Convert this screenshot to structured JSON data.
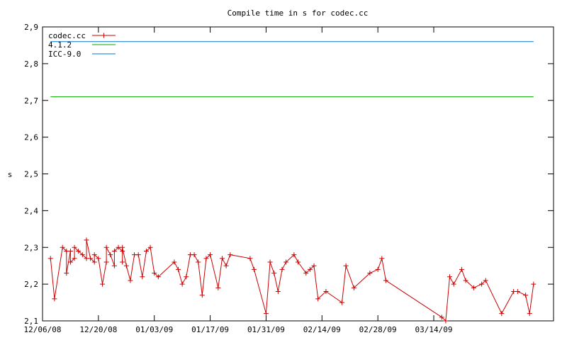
{
  "chart_data": {
    "type": "line",
    "title": "Compile time in s for codec.cc",
    "xlabel": "",
    "ylabel": "s",
    "ylim": [
      2.1,
      2.9
    ],
    "xlim": [
      "2008-12-06",
      "2009-04-13"
    ],
    "grid": false,
    "legend_position": "top-left",
    "y_ticks": [
      "2,1",
      "2,2",
      "2,3",
      "2,4",
      "2,5",
      "2,6",
      "2,7",
      "2,8",
      "2,9"
    ],
    "x_ticks": [
      "12/06/08",
      "12/20/08",
      "01/03/09",
      "01/17/09",
      "01/31/09",
      "02/14/09",
      "02/28/09",
      "03/14/09"
    ],
    "series": [
      {
        "name": "codec.cc",
        "color": "#cc0000",
        "marker": "plus",
        "points": [
          [
            "2008-12-08",
            2.27
          ],
          [
            "2008-12-09",
            2.16
          ],
          [
            "2008-12-11",
            2.3
          ],
          [
            "2008-12-12",
            2.29
          ],
          [
            "2008-12-12",
            2.23
          ],
          [
            "2008-12-13",
            2.29
          ],
          [
            "2008-12-13",
            2.26
          ],
          [
            "2008-12-14",
            2.27
          ],
          [
            "2008-12-14",
            2.3
          ],
          [
            "2008-12-15",
            2.29
          ],
          [
            "2008-12-16",
            2.28
          ],
          [
            "2008-12-17",
            2.27
          ],
          [
            "2008-12-17",
            2.32
          ],
          [
            "2008-12-18",
            2.27
          ],
          [
            "2008-12-19",
            2.26
          ],
          [
            "2008-12-19",
            2.28
          ],
          [
            "2008-12-20",
            2.27
          ],
          [
            "2008-12-21",
            2.2
          ],
          [
            "2008-12-22",
            2.26
          ],
          [
            "2008-12-22",
            2.3
          ],
          [
            "2008-12-23",
            2.28
          ],
          [
            "2008-12-24",
            2.25
          ],
          [
            "2008-12-24",
            2.29
          ],
          [
            "2008-12-25",
            2.3
          ],
          [
            "2008-12-26",
            2.29
          ],
          [
            "2008-12-26",
            2.26
          ],
          [
            "2008-12-26",
            2.3
          ],
          [
            "2008-12-27",
            2.25
          ],
          [
            "2008-12-28",
            2.21
          ],
          [
            "2008-12-29",
            2.28
          ],
          [
            "2008-12-30",
            2.28
          ],
          [
            "2008-12-31",
            2.22
          ],
          [
            "2009-01-01",
            2.29
          ],
          [
            "2009-01-02",
            2.3
          ],
          [
            "2009-01-03",
            2.23
          ],
          [
            "2009-01-04",
            2.22
          ],
          [
            "2009-01-08",
            2.26
          ],
          [
            "2009-01-09",
            2.24
          ],
          [
            "2009-01-10",
            2.2
          ],
          [
            "2009-01-11",
            2.22
          ],
          [
            "2009-01-12",
            2.28
          ],
          [
            "2009-01-13",
            2.28
          ],
          [
            "2009-01-14",
            2.26
          ],
          [
            "2009-01-15",
            2.17
          ],
          [
            "2009-01-16",
            2.27
          ],
          [
            "2009-01-17",
            2.28
          ],
          [
            "2009-01-19",
            2.19
          ],
          [
            "2009-01-20",
            2.27
          ],
          [
            "2009-01-21",
            2.25
          ],
          [
            "2009-01-22",
            2.28
          ],
          [
            "2009-01-27",
            2.27
          ],
          [
            "2009-01-28",
            2.24
          ],
          [
            "2009-01-31",
            2.12
          ],
          [
            "2009-02-01",
            2.26
          ],
          [
            "2009-02-02",
            2.23
          ],
          [
            "2009-02-03",
            2.18
          ],
          [
            "2009-02-04",
            2.24
          ],
          [
            "2009-02-05",
            2.26
          ],
          [
            "2009-02-07",
            2.28
          ],
          [
            "2009-02-08",
            2.26
          ],
          [
            "2009-02-10",
            2.23
          ],
          [
            "2009-02-11",
            2.24
          ],
          [
            "2009-02-12",
            2.25
          ],
          [
            "2009-02-13",
            2.16
          ],
          [
            "2009-02-15",
            2.18
          ],
          [
            "2009-02-19",
            2.15
          ],
          [
            "2009-02-20",
            2.25
          ],
          [
            "2009-02-22",
            2.19
          ],
          [
            "2009-02-26",
            2.23
          ],
          [
            "2009-02-28",
            2.24
          ],
          [
            "2009-03-01",
            2.27
          ],
          [
            "2009-03-02",
            2.21
          ],
          [
            "2009-03-16",
            2.11
          ],
          [
            "2009-03-17",
            2.1
          ],
          [
            "2009-03-18",
            2.22
          ],
          [
            "2009-03-19",
            2.2
          ],
          [
            "2009-03-21",
            2.24
          ],
          [
            "2009-03-22",
            2.21
          ],
          [
            "2009-03-24",
            2.19
          ],
          [
            "2009-03-26",
            2.2
          ],
          [
            "2009-03-27",
            2.21
          ],
          [
            "2009-03-31",
            2.12
          ],
          [
            "2009-04-03",
            2.18
          ],
          [
            "2009-04-04",
            2.18
          ],
          [
            "2009-04-06",
            2.17
          ],
          [
            "2009-04-07",
            2.12
          ],
          [
            "2009-04-08",
            2.2
          ]
        ]
      },
      {
        "name": "4.1.2",
        "color": "#00aa00",
        "points": [
          [
            "2008-12-08",
            2.71
          ],
          [
            "2009-04-08",
            2.71
          ]
        ]
      },
      {
        "name": "ICC-9.0",
        "color": "#0077cc",
        "points": [
          [
            "2008-12-08",
            2.86
          ],
          [
            "2009-04-08",
            2.86
          ]
        ]
      }
    ]
  }
}
